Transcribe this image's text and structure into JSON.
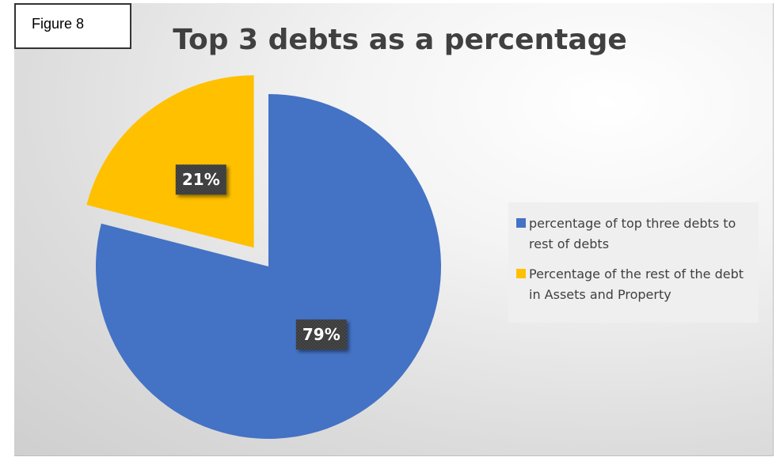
{
  "figure_label": "Figure 8",
  "chart_data": {
    "type": "pie",
    "title": "Top 3 debts as a percentage",
    "slices": [
      {
        "label": "percentage of top three debts to rest of debts",
        "value": 79,
        "display": "79%",
        "color": "#4472C4"
      },
      {
        "label": "Percentage of the rest of the debt in Assets and Property",
        "value": 21,
        "display": "21%",
        "color": "#FFC000"
      }
    ],
    "legend_position": "right",
    "exploded_slice": "Percentage of the rest of the debt in Assets and Property"
  }
}
